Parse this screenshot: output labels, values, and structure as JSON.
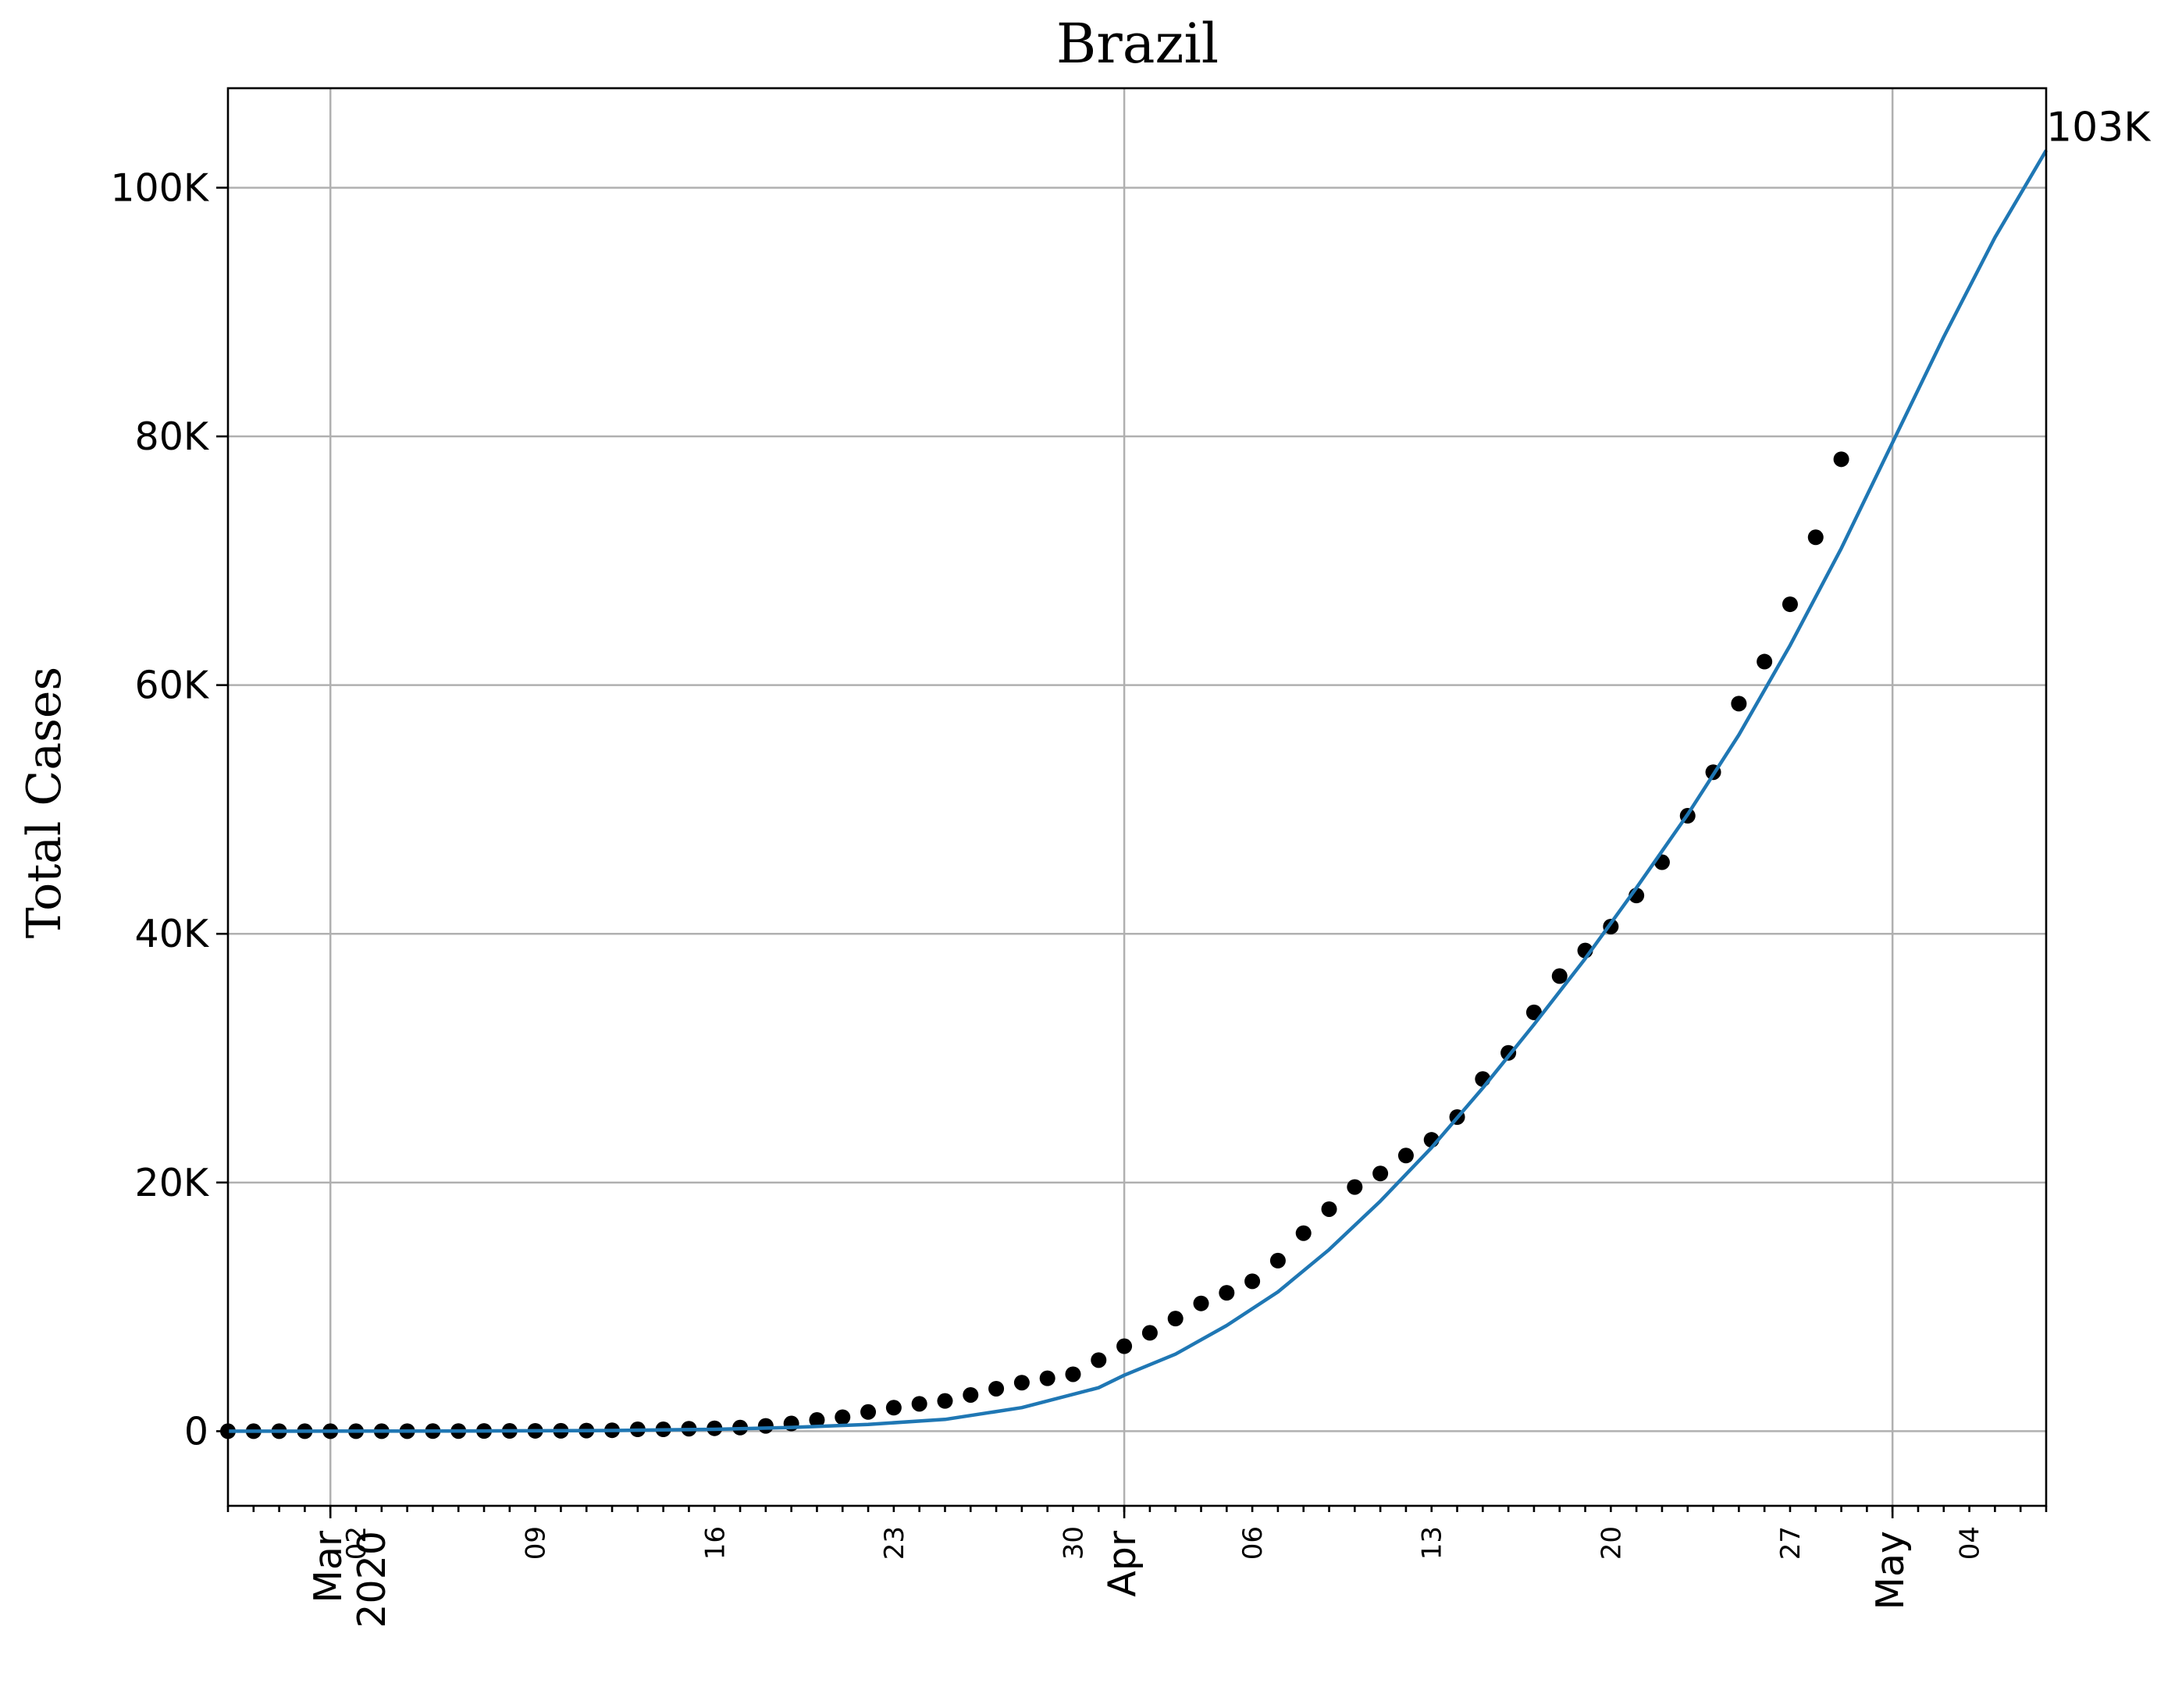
{
  "chart_data": {
    "type": "scatter",
    "title": "Brazil",
    "xlabel": "",
    "ylabel": "Total Cases",
    "x_range": [
      "2020-02-26",
      "2020-05-07"
    ],
    "ylim": [
      -6000,
      108000
    ],
    "grid": true,
    "y_ticks": [
      {
        "value": 0,
        "label": "0"
      },
      {
        "value": 20000,
        "label": "20K"
      },
      {
        "value": 40000,
        "label": "40K"
      },
      {
        "value": 60000,
        "label": "60K"
      },
      {
        "value": 80000,
        "label": "80K"
      },
      {
        "value": 100000,
        "label": "100K"
      }
    ],
    "x_major_ticks": [
      {
        "date": "2020-03-01",
        "label": "Mar\n2020"
      },
      {
        "date": "2020-04-01",
        "label": "Apr"
      },
      {
        "date": "2020-05-01",
        "label": "May"
      }
    ],
    "x_minor_labels": [
      {
        "date": "2020-03-02",
        "label": "02"
      },
      {
        "date": "2020-03-09",
        "label": "09"
      },
      {
        "date": "2020-03-16",
        "label": "16"
      },
      {
        "date": "2020-03-23",
        "label": "23"
      },
      {
        "date": "2020-03-30",
        "label": "30"
      },
      {
        "date": "2020-04-06",
        "label": "06"
      },
      {
        "date": "2020-04-13",
        "label": "13"
      },
      {
        "date": "2020-04-20",
        "label": "20"
      },
      {
        "date": "2020-04-27",
        "label": "27"
      },
      {
        "date": "2020-05-04",
        "label": "04"
      }
    ],
    "series": [
      {
        "type": "scatter",
        "color": "#000000",
        "points": [
          [
            "2020-02-26",
            1
          ],
          [
            "2020-02-27",
            1
          ],
          [
            "2020-02-28",
            1
          ],
          [
            "2020-02-29",
            2
          ],
          [
            "2020-03-01",
            2
          ],
          [
            "2020-03-02",
            2
          ],
          [
            "2020-03-03",
            2
          ],
          [
            "2020-03-04",
            4
          ],
          [
            "2020-03-05",
            8
          ],
          [
            "2020-03-06",
            13
          ],
          [
            "2020-03-07",
            19
          ],
          [
            "2020-03-08",
            25
          ],
          [
            "2020-03-09",
            30
          ],
          [
            "2020-03-10",
            34
          ],
          [
            "2020-03-11",
            52
          ],
          [
            "2020-03-12",
            77
          ],
          [
            "2020-03-13",
            151
          ],
          [
            "2020-03-14",
            151
          ],
          [
            "2020-03-15",
            200
          ],
          [
            "2020-03-16",
            234
          ],
          [
            "2020-03-17",
            291
          ],
          [
            "2020-03-18",
            428
          ],
          [
            "2020-03-19",
            621
          ],
          [
            "2020-03-20",
            904
          ],
          [
            "2020-03-21",
            1128
          ],
          [
            "2020-03-22",
            1546
          ],
          [
            "2020-03-23",
            1891
          ],
          [
            "2020-03-24",
            2201
          ],
          [
            "2020-03-25",
            2433
          ],
          [
            "2020-03-26",
            2915
          ],
          [
            "2020-03-27",
            3417
          ],
          [
            "2020-03-28",
            3904
          ],
          [
            "2020-03-29",
            4256
          ],
          [
            "2020-03-30",
            4579
          ],
          [
            "2020-03-31",
            5717
          ],
          [
            "2020-04-01",
            6836
          ],
          [
            "2020-04-02",
            7910
          ],
          [
            "2020-04-03",
            9056
          ],
          [
            "2020-04-04",
            10278
          ],
          [
            "2020-04-05",
            11130
          ],
          [
            "2020-04-06",
            12056
          ],
          [
            "2020-04-07",
            13717
          ],
          [
            "2020-04-08",
            15927
          ],
          [
            "2020-04-09",
            17857
          ],
          [
            "2020-04-10",
            19638
          ],
          [
            "2020-04-11",
            20727
          ],
          [
            "2020-04-12",
            22169
          ],
          [
            "2020-04-13",
            23430
          ],
          [
            "2020-04-14",
            25262
          ],
          [
            "2020-04-15",
            28320
          ],
          [
            "2020-04-16",
            30425
          ],
          [
            "2020-04-17",
            33682
          ],
          [
            "2020-04-18",
            36599
          ],
          [
            "2020-04-19",
            38654
          ],
          [
            "2020-04-20",
            40581
          ],
          [
            "2020-04-21",
            43079
          ],
          [
            "2020-04-22",
            45757
          ],
          [
            "2020-04-23",
            49492
          ],
          [
            "2020-04-24",
            52995
          ],
          [
            "2020-04-25",
            58509
          ],
          [
            "2020-04-26",
            61888
          ],
          [
            "2020-04-27",
            66501
          ],
          [
            "2020-04-28",
            71886
          ],
          [
            "2020-04-29",
            78162
          ]
        ]
      },
      {
        "type": "line",
        "color": "#1f77b4",
        "points": [
          [
            "2020-02-26",
            0
          ],
          [
            "2020-03-02",
            5
          ],
          [
            "2020-03-07",
            20
          ],
          [
            "2020-03-12",
            60
          ],
          [
            "2020-03-16",
            150
          ],
          [
            "2020-03-19",
            300
          ],
          [
            "2020-03-22",
            550
          ],
          [
            "2020-03-25",
            950
          ],
          [
            "2020-03-28",
            1900
          ],
          [
            "2020-03-31",
            3500
          ],
          [
            "2020-04-01",
            4500
          ],
          [
            "2020-04-03",
            6200
          ],
          [
            "2020-04-05",
            8500
          ],
          [
            "2020-04-07",
            11200
          ],
          [
            "2020-04-09",
            14600
          ],
          [
            "2020-04-11",
            18500
          ],
          [
            "2020-04-13",
            22800
          ],
          [
            "2020-04-15",
            27600
          ],
          [
            "2020-04-17",
            32700
          ],
          [
            "2020-04-19",
            38000
          ],
          [
            "2020-04-21",
            43700
          ],
          [
            "2020-04-23",
            49600
          ],
          [
            "2020-04-25",
            56000
          ],
          [
            "2020-04-27",
            63200
          ],
          [
            "2020-04-29",
            71000
          ],
          [
            "2020-05-01",
            79500
          ],
          [
            "2020-05-03",
            88000
          ],
          [
            "2020-05-05",
            96000
          ],
          [
            "2020-05-07",
            103000
          ]
        ],
        "end_label": "103K"
      }
    ]
  }
}
